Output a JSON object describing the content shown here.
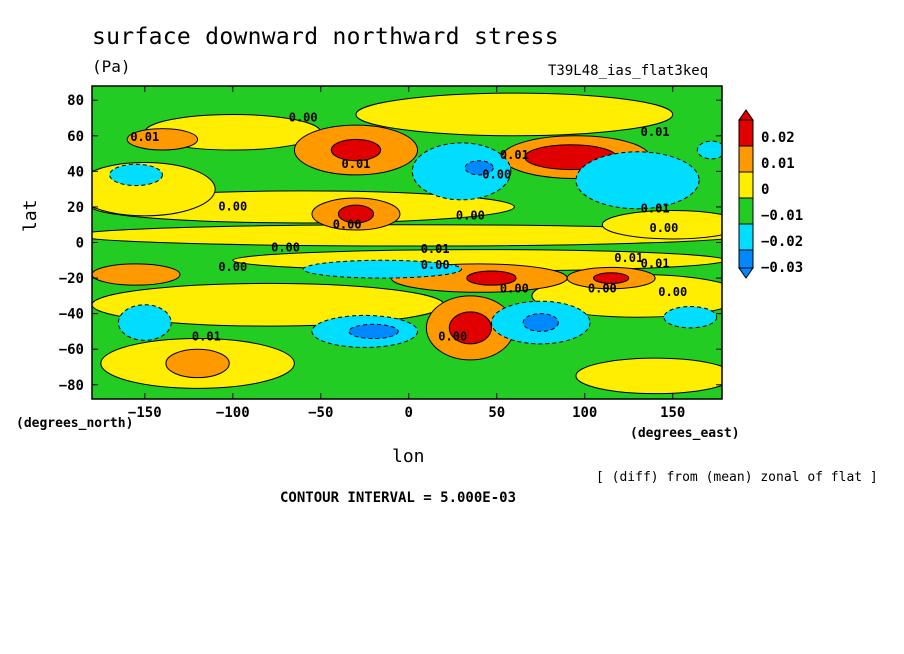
{
  "chart_data": {
    "type": "heatmap",
    "title": "surface downward northward stress",
    "units": "(Pa)",
    "dataset": "T39L48_ias_flat3keq",
    "xlabel": "lon",
    "ylabel": "lat",
    "x_unit_label": "(degrees_east)",
    "y_unit_label": "(degrees_north)",
    "x_ticks": [
      -150,
      -100,
      -50,
      0,
      50,
      100,
      150
    ],
    "y_ticks": [
      -80,
      -60,
      -40,
      -20,
      0,
      20,
      40,
      60,
      80
    ],
    "xlim": [
      -180,
      178
    ],
    "ylim": [
      -88,
      88
    ],
    "colorbar": {
      "labels": [
        "0.02",
        "0.01",
        "0",
        "−0.01",
        "−0.02",
        "−0.03"
      ],
      "levels": [
        0.02,
        0.01,
        0,
        -0.01,
        -0.02,
        -0.03
      ],
      "colors": [
        "#e00000",
        "#ff9900",
        "#ffee00",
        "#22cc22",
        "#00ddff",
        "#0088ff"
      ]
    },
    "contour_labels": [
      "0.01",
      "0.00",
      "0.01",
      "0.00",
      "0.00",
      "0.00",
      "0.00",
      "0.01",
      "0.00",
      "0.00",
      "0.01",
      "0.01",
      "0.00",
      "0.01",
      "0.01",
      "0.00",
      "0.01",
      "0.00",
      "0.00",
      "0.01",
      "0.00",
      "0.00"
    ],
    "features": [
      {
        "lon": -30,
        "lat": 52,
        "value": 0.02
      },
      {
        "lon": -30,
        "lat": 16,
        "value": 0.02
      },
      {
        "lon": 95,
        "lat": 48,
        "value": 0.025
      },
      {
        "lon": 40,
        "lat": -20,
        "value": 0.02
      },
      {
        "lon": 35,
        "lat": -48,
        "value": 0.025
      },
      {
        "lon": 115,
        "lat": -20,
        "value": 0.02
      },
      {
        "lon": -120,
        "lat": -68,
        "value": 0.015
      },
      {
        "lon": 30,
        "lat": 40,
        "value": -0.02
      },
      {
        "lon": 130,
        "lat": 35,
        "value": -0.02
      },
      {
        "lon": -25,
        "lat": -50,
        "value": -0.02
      },
      {
        "lon": 75,
        "lat": -45,
        "value": -0.02
      },
      {
        "lon": -15,
        "lat": -15,
        "value": -0.015
      }
    ]
  },
  "footer": {
    "source_note": "[ (diff) from (mean) zonal of flat ]",
    "contour_interval": "CONTOUR INTERVAL = 5.000E-03"
  }
}
